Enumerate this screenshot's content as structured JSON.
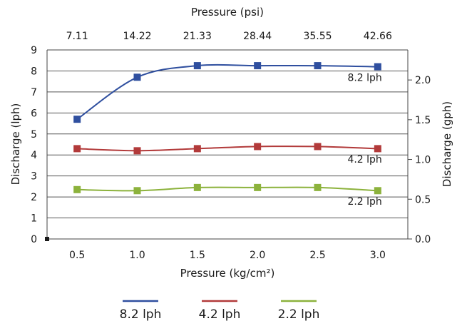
{
  "chart_data": {
    "type": "line",
    "top_axis": {
      "label": "Pressure (psi)",
      "ticks": [
        "7.11",
        "14.22",
        "21.33",
        "28.44",
        "35.55",
        "42.66"
      ]
    },
    "x_axis": {
      "label": "Pressure (kg/cm²)",
      "ticks": [
        "0.5",
        "1.0",
        "1.5",
        "2.0",
        "2.5",
        "3.0"
      ],
      "xlim": [
        0.25,
        3.25
      ]
    },
    "y_axis_left": {
      "label": "Discharge (lph)",
      "ylim": [
        0,
        9
      ],
      "ticks": [
        "0",
        "1",
        "2",
        "3",
        "4",
        "5",
        "6",
        "7",
        "8",
        "9"
      ]
    },
    "y_axis_right": {
      "label": "Discharge (gph)",
      "ylim": [
        0,
        2.378
      ],
      "ticks": [
        "0.0",
        "0.5",
        "1.0",
        "1.5",
        "2.0"
      ],
      "tick_values": [
        0,
        0.5,
        1.0,
        1.5,
        2.0
      ]
    },
    "x": [
      0.5,
      1.0,
      1.5,
      2.0,
      2.5,
      3.0
    ],
    "series": [
      {
        "name": "8.2 lph",
        "color": "#2f4f9f",
        "values": [
          5.7,
          7.7,
          8.25,
          8.25,
          8.25,
          8.2
        ],
        "label": "8.2 lph"
      },
      {
        "name": "4.2 lph",
        "color": "#b23a3a",
        "values": [
          4.3,
          4.2,
          4.3,
          4.4,
          4.4,
          4.3
        ],
        "label": "4.2 lph"
      },
      {
        "name": "2.2 lph",
        "color": "#8cb23c",
        "values": [
          2.35,
          2.3,
          2.45,
          2.45,
          2.45,
          2.3
        ],
        "label": "2.2 lph"
      }
    ],
    "grid": "horizontal",
    "legend": "bottom"
  }
}
